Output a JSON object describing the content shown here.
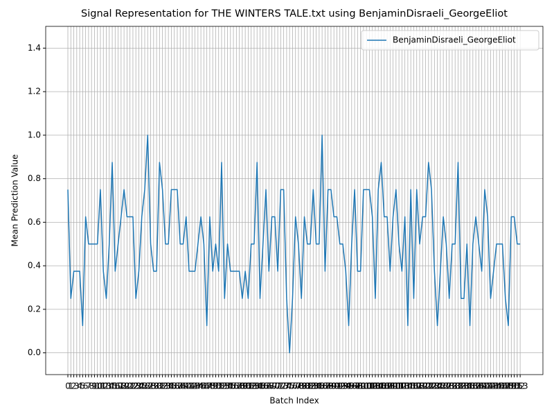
{
  "chart_data": {
    "type": "line",
    "title": "Signal Representation for THE WINTERS TALE.txt using BenjaminDisraeli_GeorgeEliot",
    "x_label": "Batch Index",
    "y_label": "Mean Prediction Value",
    "x": [
      0,
      1,
      2,
      3,
      4,
      5,
      6,
      7,
      8,
      9,
      10,
      11,
      12,
      13,
      14,
      15,
      16,
      17,
      18,
      19,
      20,
      21,
      22,
      23,
      24,
      25,
      26,
      27,
      28,
      29,
      30,
      31,
      32,
      33,
      34,
      35,
      36,
      37,
      38,
      39,
      40,
      41,
      42,
      43,
      44,
      45,
      46,
      47,
      48,
      49,
      50,
      51,
      52,
      53,
      54,
      55,
      56,
      57,
      58,
      59,
      60,
      61,
      62,
      63,
      64,
      65,
      66,
      67,
      68,
      69,
      70,
      71,
      72,
      73,
      74,
      75,
      76,
      77,
      78,
      79,
      80,
      81,
      82,
      83,
      84,
      85,
      86,
      87,
      88,
      89,
      90,
      91,
      92,
      93,
      94,
      95,
      96,
      97,
      98,
      99,
      100,
      101,
      102,
      103,
      104,
      105,
      106,
      107,
      108,
      109,
      110,
      111,
      112,
      113,
      114,
      115,
      116,
      117,
      118,
      119,
      120,
      121,
      122,
      123,
      124,
      125,
      126,
      127,
      128,
      129,
      130,
      131,
      132,
      133,
      134,
      135,
      136,
      137,
      138,
      139,
      140,
      141,
      142,
      143,
      144,
      145,
      146,
      147,
      148,
      149,
      150,
      151,
      152,
      153
    ],
    "series": [
      {
        "name": "BenjaminDisraeli_GeorgeEliot",
        "color": "#1f77b4",
        "values": [
          0.75,
          0.25,
          0.375,
          0.375,
          0.375,
          0.125,
          0.625,
          0.5,
          0.5,
          0.5,
          0.5,
          0.75,
          0.375,
          0.25,
          0.5,
          0.875,
          0.375,
          0.5,
          0.625,
          0.75,
          0.625,
          0.625,
          0.625,
          0.25,
          0.375,
          0.625,
          0.75,
          1.0,
          0.5,
          0.375,
          0.375,
          0.875,
          0.75,
          0.5,
          0.5,
          0.75,
          0.75,
          0.75,
          0.5,
          0.5,
          0.625,
          0.375,
          0.375,
          0.375,
          0.5,
          0.625,
          0.5,
          0.125,
          0.625,
          0.375,
          0.5,
          0.375,
          0.875,
          0.25,
          0.5,
          0.375,
          0.375,
          0.375,
          0.375,
          0.25,
          0.375,
          0.25,
          0.5,
          0.5,
          0.875,
          0.25,
          0.5,
          0.75,
          0.375,
          0.625,
          0.625,
          0.375,
          0.75,
          0.75,
          0.25,
          0,
          0.25,
          0.625,
          0.5,
          0.25,
          0.625,
          0.5,
          0.5,
          0.75,
          0.5,
          0.5,
          1.0,
          0.375,
          0.75,
          0.75,
          0.625,
          0.625,
          0.5,
          0.5,
          0.375,
          0.125,
          0.5,
          0.75,
          0.375,
          0.375,
          0.75,
          0.75,
          0.75,
          0.625,
          0.25,
          0.75,
          0.875,
          0.625,
          0.625,
          0.375,
          0.625,
          0.75,
          0.5,
          0.375,
          0.625,
          0.125,
          0.75,
          0.25,
          0.75,
          0.5,
          0.625,
          0.625,
          0.875,
          0.75,
          0.375,
          0.125,
          0.375,
          0.625,
          0.5,
          0.25,
          0.5,
          0.5,
          0.875,
          0.25,
          0.25,
          0.5,
          0.125,
          0.5,
          0.625,
          0.5,
          0.375,
          0.75,
          0.625,
          0.25,
          0.375,
          0.5,
          0.5,
          0.5,
          0.25,
          0.125,
          0.625,
          0.625,
          0.5,
          0.5
        ]
      }
    ],
    "xlim": [
      -7.5,
      160.7
    ],
    "xticks": [
      0,
      1,
      2,
      3,
      4,
      5,
      6,
      7,
      8,
      9,
      10,
      11,
      12,
      13,
      14,
      15,
      16,
      17,
      18,
      19,
      20,
      21,
      22,
      23,
      24,
      25,
      26,
      27,
      28,
      29,
      30,
      31,
      32,
      33,
      34,
      35,
      36,
      37,
      38,
      39,
      40,
      41,
      42,
      43,
      44,
      45,
      46,
      47,
      48,
      49,
      50,
      51,
      52,
      53,
      54,
      55,
      56,
      57,
      58,
      59,
      60,
      61,
      62,
      63,
      64,
      65,
      66,
      67,
      68,
      69,
      70,
      71,
      72,
      73,
      74,
      75,
      76,
      77,
      78,
      79,
      80,
      81,
      82,
      83,
      84,
      85,
      86,
      87,
      88,
      89,
      90,
      91,
      92,
      93,
      94,
      95,
      96,
      97,
      98,
      99,
      100,
      101,
      102,
      103,
      104,
      105,
      106,
      107,
      108,
      109,
      110,
      111,
      112,
      113,
      114,
      115,
      116,
      117,
      118,
      119,
      120,
      121,
      122,
      123,
      124,
      125,
      126,
      127,
      128,
      129,
      130,
      131,
      132,
      133,
      134,
      135,
      136,
      137,
      138,
      139,
      140,
      141,
      142,
      143,
      144,
      145,
      146,
      147,
      148,
      149,
      150,
      151,
      152,
      153
    ],
    "ylim": [
      -0.1,
      1.5
    ],
    "yticks": [
      {
        "value": 0,
        "label": "0.0"
      },
      0.2,
      0.4,
      0.6,
      0.8,
      {
        "value": 1,
        "label": "1.0"
      },
      1.2,
      1.4
    ],
    "grid": true,
    "legend": "upper right"
  }
}
